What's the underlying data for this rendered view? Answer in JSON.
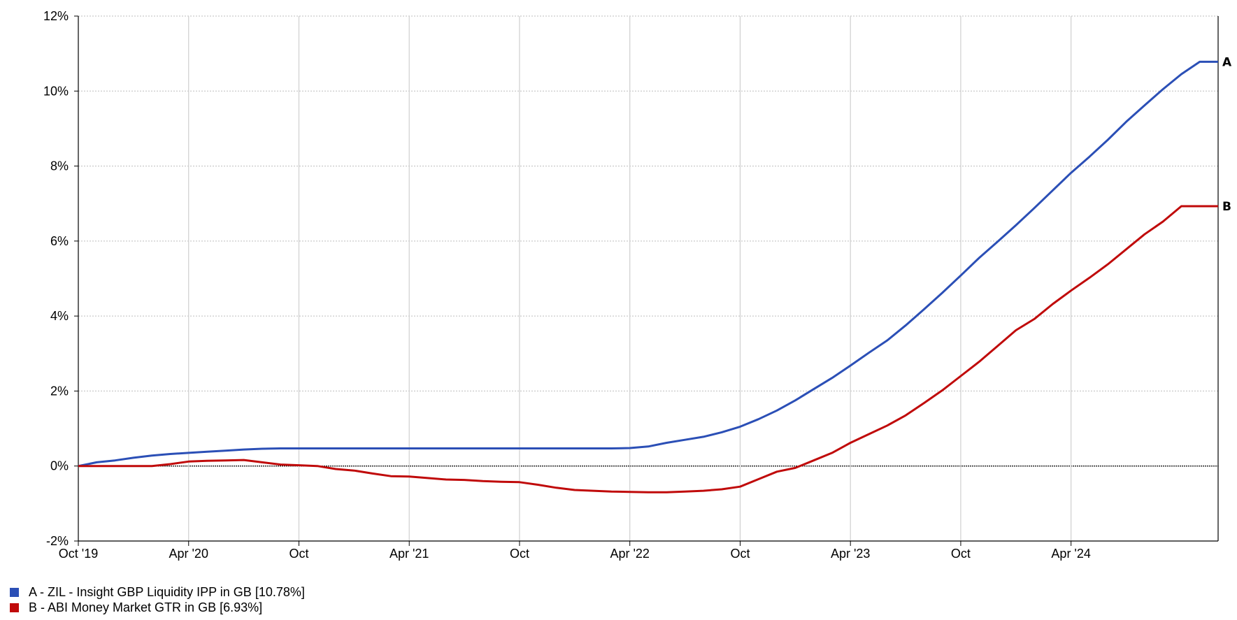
{
  "chart_data": {
    "type": "line",
    "x_tick_labels": [
      "Oct '19",
      "Apr '20",
      "Oct",
      "Apr '21",
      "Oct",
      "Apr '22",
      "Oct",
      "Apr '23",
      "Oct",
      "Apr '24"
    ],
    "y_tick_labels": [
      "12%",
      "10%",
      "8%",
      "6%",
      "4%",
      "2%",
      "0%",
      "-2%"
    ],
    "ylim": [
      -2,
      12
    ],
    "xlim": [
      "2019-10",
      "2024-12"
    ],
    "grid": true,
    "legend_position": "bottom-left",
    "series": [
      {
        "name": "A - ZIL - Insight GBP Liquidity IPP in GB [10.78%]",
        "end_label": "A",
        "color": "#2b4fb6",
        "x": [
          "2019-10",
          "2019-11",
          "2019-12",
          "2020-01",
          "2020-02",
          "2020-03",
          "2020-04",
          "2020-05",
          "2020-06",
          "2020-07",
          "2020-08",
          "2020-09",
          "2020-10",
          "2020-11",
          "2020-12",
          "2021-01",
          "2021-02",
          "2021-03",
          "2021-04",
          "2021-05",
          "2021-06",
          "2021-07",
          "2021-08",
          "2021-09",
          "2021-10",
          "2021-11",
          "2021-12",
          "2022-01",
          "2022-02",
          "2022-03",
          "2022-04",
          "2022-05",
          "2022-06",
          "2022-07",
          "2022-08",
          "2022-09",
          "2022-10",
          "2022-11",
          "2022-12",
          "2023-01",
          "2023-02",
          "2023-03",
          "2023-04",
          "2023-05",
          "2023-06",
          "2023-07",
          "2023-08",
          "2023-09",
          "2023-10",
          "2023-11",
          "2023-12",
          "2024-01",
          "2024-02",
          "2024-03",
          "2024-04",
          "2024-05",
          "2024-06",
          "2024-07",
          "2024-08",
          "2024-09",
          "2024-10",
          "2024-11",
          "2024-12"
        ],
        "values": [
          0.0,
          0.1,
          0.15,
          0.22,
          0.28,
          0.32,
          0.35,
          0.38,
          0.41,
          0.44,
          0.46,
          0.47,
          0.47,
          0.47,
          0.47,
          0.47,
          0.47,
          0.47,
          0.47,
          0.47,
          0.47,
          0.47,
          0.47,
          0.47,
          0.47,
          0.47,
          0.47,
          0.47,
          0.47,
          0.47,
          0.48,
          0.52,
          0.62,
          0.7,
          0.78,
          0.9,
          1.05,
          1.25,
          1.48,
          1.75,
          2.05,
          2.35,
          2.68,
          3.02,
          3.35,
          3.75,
          4.18,
          4.62,
          5.08,
          5.55,
          5.98,
          6.42,
          6.88,
          7.35,
          7.82,
          8.25,
          8.7,
          9.18,
          9.62,
          10.05,
          10.45,
          10.78,
          10.78
        ]
      },
      {
        "name": "B - ABI Money Market GTR in GB [6.93%]",
        "end_label": "B",
        "color": "#c00a0a",
        "x": [
          "2019-10",
          "2019-11",
          "2019-12",
          "2020-01",
          "2020-02",
          "2020-03",
          "2020-04",
          "2020-05",
          "2020-06",
          "2020-07",
          "2020-08",
          "2020-09",
          "2020-10",
          "2020-11",
          "2020-12",
          "2021-01",
          "2021-02",
          "2021-03",
          "2021-04",
          "2021-05",
          "2021-06",
          "2021-07",
          "2021-08",
          "2021-09",
          "2021-10",
          "2021-11",
          "2021-12",
          "2022-01",
          "2022-02",
          "2022-03",
          "2022-04",
          "2022-05",
          "2022-06",
          "2022-07",
          "2022-08",
          "2022-09",
          "2022-10",
          "2022-11",
          "2022-12",
          "2023-01",
          "2023-02",
          "2023-03",
          "2023-04",
          "2023-05",
          "2023-06",
          "2023-07",
          "2023-08",
          "2023-09",
          "2023-10",
          "2023-11",
          "2023-12",
          "2024-01",
          "2024-02",
          "2024-03",
          "2024-04",
          "2024-05",
          "2024-06",
          "2024-07",
          "2024-08",
          "2024-09",
          "2024-10",
          "2024-11",
          "2024-12"
        ],
        "values": [
          0.0,
          0.0,
          0.0,
          0.0,
          0.0,
          0.05,
          0.12,
          0.14,
          0.15,
          0.16,
          0.1,
          0.04,
          0.02,
          0.0,
          -0.08,
          -0.12,
          -0.2,
          -0.27,
          -0.28,
          -0.32,
          -0.36,
          -0.37,
          -0.4,
          -0.42,
          -0.43,
          -0.5,
          -0.58,
          -0.64,
          -0.66,
          -0.68,
          -0.69,
          -0.7,
          -0.7,
          -0.68,
          -0.66,
          -0.62,
          -0.55,
          -0.35,
          -0.15,
          -0.05,
          0.15,
          0.35,
          0.62,
          0.85,
          1.08,
          1.35,
          1.68,
          2.02,
          2.4,
          2.78,
          3.2,
          3.62,
          3.92,
          4.32,
          4.68,
          5.02,
          5.38,
          5.78,
          6.18,
          6.52,
          6.93,
          6.93,
          6.93
        ]
      }
    ]
  }
}
